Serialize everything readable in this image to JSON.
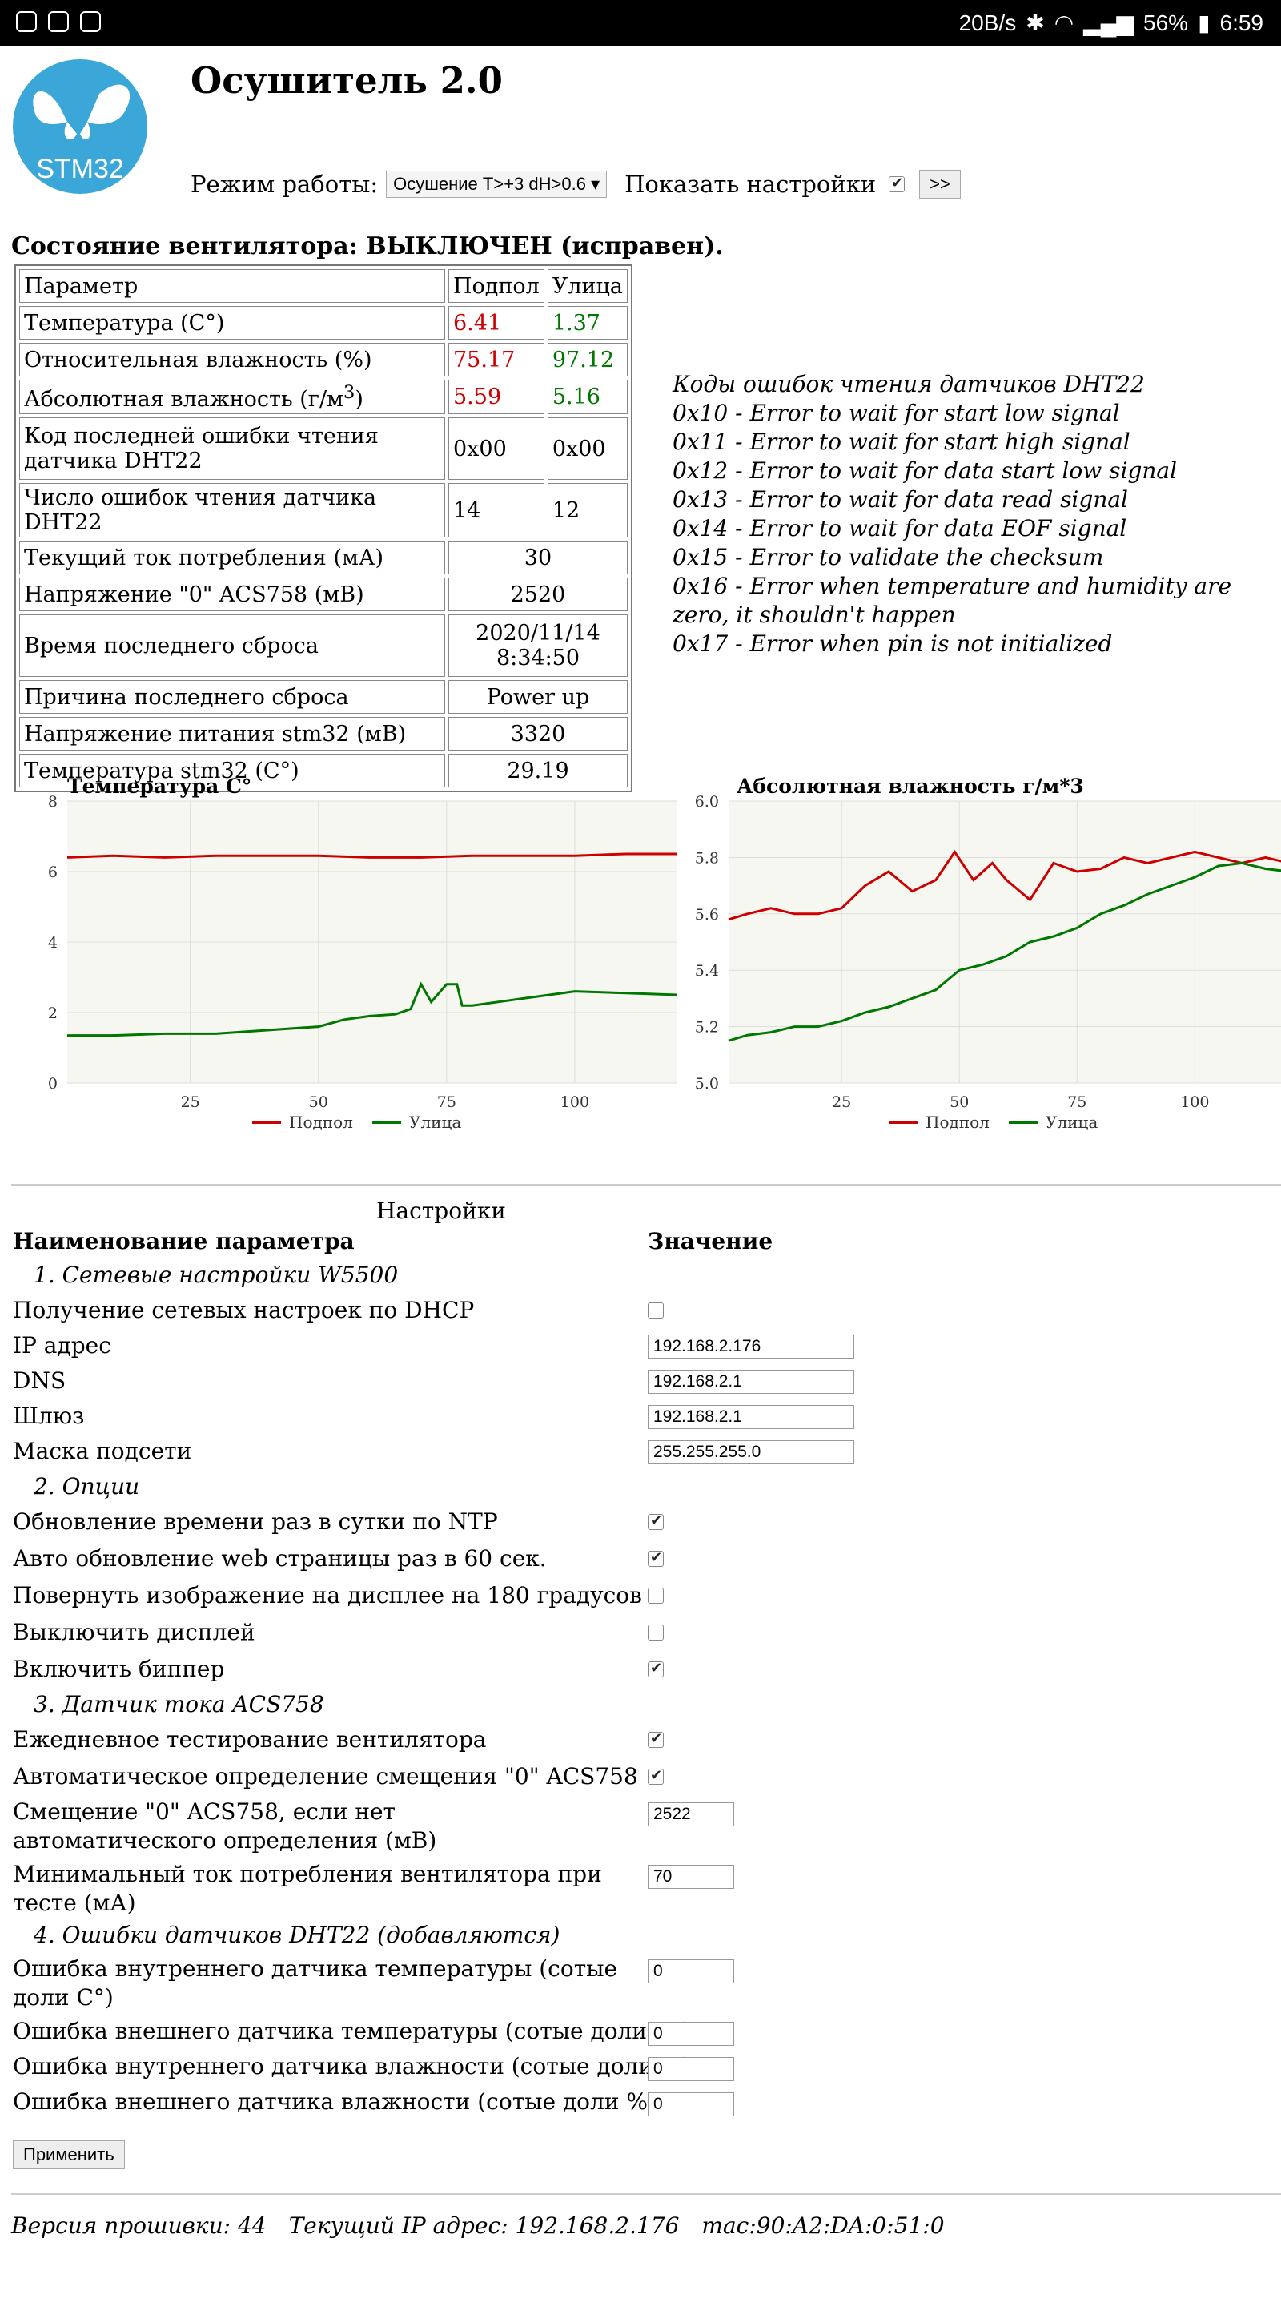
{
  "statusbar": {
    "speed": "20B/s",
    "battery": "56%",
    "time": "6:59"
  },
  "header": {
    "logo_text": "STM32",
    "title": "Осушитель 2.0",
    "mode_label": "Режим работы:",
    "mode_value": "Осушение T>+3 dH>0.6",
    "show_settings_label": "Показать настройки",
    "go_button": ">>"
  },
  "fan_state": "Состояние вентилятора: ВЫКЛЮЧЕН (исправен).",
  "state_table": {
    "headers": [
      "Параметр",
      "Подпол",
      "Улица"
    ],
    "rows": [
      {
        "name": "Температура (С°)",
        "in": "6.41",
        "out": "1.37"
      },
      {
        "name": "Относительная влажность (%)",
        "in": "75.17",
        "out": "97.12"
      },
      {
        "name": "Абсолютная влажность (г/м",
        "sup": "3",
        "tail": ")",
        "in": "5.59",
        "out": "5.16"
      },
      {
        "name": "Код последней ошибки чтения датчика DHT22",
        "in": "0x00",
        "out": "0x00"
      },
      {
        "name": "Число ошибок чтения датчика DHT22",
        "in": "14",
        "out": "12"
      }
    ],
    "wide_rows": [
      {
        "name": "Текущий ток потребления (мА)",
        "value": "30"
      },
      {
        "name": "Напряжение \"0\" ACS758 (мВ)",
        "value": "2520"
      },
      {
        "name": "Время последнего сброса",
        "value": "2020/11/14 8:34:50"
      },
      {
        "name": "Причина последнего сброса",
        "value": "Power up"
      },
      {
        "name": "Напряжение питания stm32 (мВ)",
        "value": "3320"
      },
      {
        "name": "Температура stm32 (С°)",
        "value": "29.19"
      }
    ]
  },
  "error_codes": [
    "Коды ошибок чтения датчиков DHT22",
    "0x10 - Error to wait for start low signal",
    "0x11 - Error to wait for start high signal",
    "0x12 - Error to wait for data start low signal",
    "0x13 - Error to wait for data read signal",
    "0x14 - Error to wait for data EOF signal",
    "0x15 - Error to validate the checksum",
    "0x16 - Error when temperature and humidity are zero, it shouldn't happen",
    "0x17 - Error when pin is not initialized"
  ],
  "chart_data": [
    {
      "type": "line",
      "title": "Температура С°",
      "xlim": [
        1,
        120
      ],
      "ylim": [
        0,
        8
      ],
      "xticks": [
        25,
        50,
        75,
        100
      ],
      "yticks": [
        0,
        2,
        4,
        6,
        8
      ],
      "grid": true,
      "legend": "bottom",
      "colors": [
        "#cc0000",
        "#007700"
      ],
      "series": [
        {
          "name": "Подпол",
          "x": [
            1,
            10,
            20,
            30,
            40,
            50,
            60,
            70,
            80,
            90,
            100,
            110,
            120
          ],
          "y": [
            6.4,
            6.45,
            6.4,
            6.45,
            6.45,
            6.45,
            6.4,
            6.4,
            6.45,
            6.45,
            6.45,
            6.5,
            6.5
          ]
        },
        {
          "name": "Улица",
          "x": [
            1,
            10,
            20,
            30,
            40,
            50,
            55,
            60,
            65,
            68,
            70,
            72,
            75,
            77,
            78,
            80,
            85,
            90,
            95,
            100,
            110,
            120
          ],
          "y": [
            1.35,
            1.35,
            1.4,
            1.4,
            1.5,
            1.6,
            1.8,
            1.9,
            1.95,
            2.1,
            2.8,
            2.3,
            2.8,
            2.8,
            2.2,
            2.2,
            2.3,
            2.4,
            2.5,
            2.6,
            2.55,
            2.5
          ]
        }
      ]
    },
    {
      "type": "line",
      "title": "Абсолютная влажность г/м*3",
      "xlim": [
        1,
        120
      ],
      "ylim": [
        5.0,
        6.0
      ],
      "xticks": [
        25,
        50,
        75,
        100
      ],
      "yticks": [
        "5.0",
        "5.2",
        "5.4",
        "5.6",
        "5.8",
        "6.0"
      ],
      "grid": true,
      "legend": "bottom",
      "colors": [
        "#cc0000",
        "#007700"
      ],
      "series": [
        {
          "name": "Подпол",
          "x": [
            1,
            5,
            10,
            15,
            20,
            25,
            30,
            35,
            40,
            45,
            49,
            53,
            57,
            60,
            65,
            70,
            75,
            80,
            85,
            90,
            95,
            100,
            105,
            110,
            115,
            120
          ],
          "y": [
            5.58,
            5.6,
            5.62,
            5.6,
            5.6,
            5.62,
            5.7,
            5.75,
            5.68,
            5.72,
            5.82,
            5.72,
            5.78,
            5.72,
            5.65,
            5.78,
            5.75,
            5.76,
            5.8,
            5.78,
            5.8,
            5.82,
            5.8,
            5.78,
            5.8,
            5.78
          ]
        },
        {
          "name": "Улица",
          "x": [
            1,
            5,
            10,
            15,
            20,
            25,
            30,
            35,
            40,
            45,
            50,
            55,
            60,
            65,
            70,
            75,
            80,
            85,
            90,
            95,
            100,
            105,
            110,
            115,
            120
          ],
          "y": [
            5.15,
            5.17,
            5.18,
            5.2,
            5.2,
            5.22,
            5.25,
            5.27,
            5.3,
            5.33,
            5.4,
            5.42,
            5.45,
            5.5,
            5.52,
            5.55,
            5.6,
            5.63,
            5.67,
            5.7,
            5.73,
            5.77,
            5.78,
            5.76,
            5.75
          ]
        }
      ]
    }
  ],
  "settings": {
    "title": "Настройки",
    "col_name": "Наименование параметра",
    "col_value": "Значение",
    "sections": {
      "net": "1. Сетевые настройки W5500",
      "opts": "2. Опции",
      "acs": "3. Датчик тока ACS758",
      "dht": "4. Ошибки датчиков DHT22 (добавляются)"
    },
    "dhcp": {
      "label": "Получение сетевых настроек по DHCP",
      "checked": false
    },
    "ip": {
      "label": "IP адрес",
      "value": "192.168.2.176"
    },
    "dns": {
      "label": "DNS",
      "value": "192.168.2.1"
    },
    "gateway": {
      "label": "Шлюз",
      "value": "192.168.2.1"
    },
    "mask": {
      "label": "Маска подсети",
      "value": "255.255.255.0"
    },
    "ntp": {
      "label": "Обновление времени раз в сутки по NTP",
      "checked": true
    },
    "autorefresh": {
      "label": "Авто обновление web страницы раз в 60 сек.",
      "checked": true
    },
    "rotate": {
      "label": "Повернуть изображение на дисплее на 180 градусов",
      "checked": false
    },
    "display_off": {
      "label": "Выключить дисплей",
      "checked": false
    },
    "beeper": {
      "label": "Включить биппер",
      "checked": true
    },
    "fan_test": {
      "label": "Ежедневное тестирование вентилятора",
      "checked": true
    },
    "auto_offset": {
      "label": "Автоматическое определение смещения \"0\" ACS758",
      "checked": true
    },
    "offset": {
      "label": "Смещение \"0\" ACS758, если нет автоматического определения (мВ)",
      "value": "2522"
    },
    "min_current": {
      "label": "Минимальный ток потребления вентилятора при тесте (мА)",
      "value": "70"
    },
    "err_in_t": {
      "label": "Ошибка внутреннего датчика температуры (сотые доли С°)",
      "value": "0"
    },
    "err_out_t": {
      "label": "Ошибка внешнего датчика температуры (сотые доли С°)",
      "value": "0"
    },
    "err_in_h": {
      "label": "Ошибка внутреннего датчика влажности (сотые доли %)",
      "value": "0"
    },
    "err_out_h": {
      "label": "Ошибка внешнего датчика влажности (сотые доли %)",
      "value": "0"
    },
    "apply": "Применить"
  },
  "footer": {
    "firmware": "Версия прошивки: 44",
    "ip": "Текущий IP адрес: 192.168.2.176",
    "mac": "mac:90:A2:DA:0:51:0"
  }
}
